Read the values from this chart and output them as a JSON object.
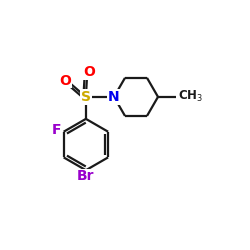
{
  "background_color": "#ffffff",
  "bond_color": "#1a1a1a",
  "atom_colors": {
    "O": "#ff0000",
    "S": "#ccaa00",
    "N": "#0000ee",
    "F": "#9900cc",
    "Br": "#9900cc"
  },
  "font_size": 9,
  "line_width": 1.6,
  "figsize": [
    2.5,
    2.5
  ],
  "dpi": 100
}
